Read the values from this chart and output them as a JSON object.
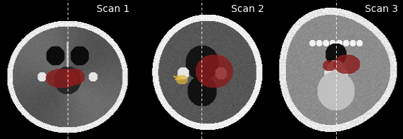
{
  "panel_labels": [
    "Scan 1",
    "Scan 2",
    "Scan 3"
  ],
  "label_color": "white",
  "label_fontsize": 10,
  "dashed_line_color": "white",
  "dashed_line_alpha": 0.85,
  "background_color": "black",
  "tumor_color": [
    139,
    28,
    28
  ],
  "arrow_color": [
    220,
    180,
    60
  ],
  "figsize": [
    5.72,
    1.98
  ],
  "dpi": 100
}
